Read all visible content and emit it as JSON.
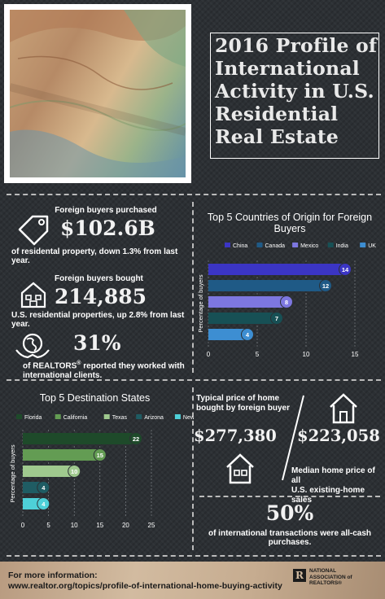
{
  "header": {
    "title_lines": [
      "2016 Profile of",
      "International",
      "Activity in U.S.",
      "Residential",
      "Real Estate"
    ]
  },
  "stats": {
    "purchased": {
      "pre": "Foreign buyers purchased",
      "value": "$102.6B",
      "post": "of residental property, down 1.3% from last year."
    },
    "bought": {
      "pre": "Foreign buyers bought",
      "value": "214,885",
      "post": "U.S. residential  properties, up 2.8% from last year."
    },
    "realtors": {
      "value": "31%",
      "line1": "of REALTORS",
      "reg": "®",
      "line1_after": " reported they worked with",
      "line2": "international clients."
    }
  },
  "price": {
    "typical_label_1": "Typical price of home",
    "typical_label_2": "bought by foreign buyer",
    "typical_value": "$277,380",
    "median_value": "$223,058",
    "median_label_1": "Median home price of all",
    "median_label_2": "U.S. existing-home sales"
  },
  "cash": {
    "value": "50%",
    "label": "of international transactions were all-cash purchases."
  },
  "footer": {
    "line1": "For more information:",
    "line2": "www.realtor.org/topics/profile-of-international-home-buying-activity",
    "logo_letter": "R",
    "logo_line1": "NATIONAL",
    "logo_line2": "ASSOCIATION of",
    "logo_line3": "REALTORS®"
  },
  "colors": {
    "countries": [
      "#3b35c4",
      "#1f5a86",
      "#7d77e0",
      "#175055",
      "#3d8ed2"
    ],
    "states": [
      "#1e4a2a",
      "#639c53",
      "#9fc98e",
      "#1f5c63",
      "#4ed0d8"
    ]
  },
  "chart_data": [
    {
      "type": "bar",
      "title": "Top 5 Countries of Origin for Foreign Buyers",
      "ylabel": "Percentage of buyers",
      "categories": [
        "China",
        "Canada",
        "Mexico",
        "India",
        "UK"
      ],
      "values": [
        14,
        12,
        8,
        7,
        4
      ],
      "xlim": [
        0,
        15
      ],
      "ticks": [
        0,
        5,
        10,
        15
      ],
      "orientation": "horizontal",
      "legend": "top"
    },
    {
      "type": "bar",
      "title": "Top 5 Destination States",
      "ylabel": "Percentage of buyers",
      "categories": [
        "Florida",
        "California",
        "Texas",
        "Arizona",
        "New York"
      ],
      "values": [
        22,
        15,
        10,
        4,
        4
      ],
      "xlim": [
        0,
        25
      ],
      "ticks": [
        0,
        5,
        10,
        15,
        20,
        25
      ],
      "orientation": "horizontal",
      "legend": "top"
    }
  ]
}
